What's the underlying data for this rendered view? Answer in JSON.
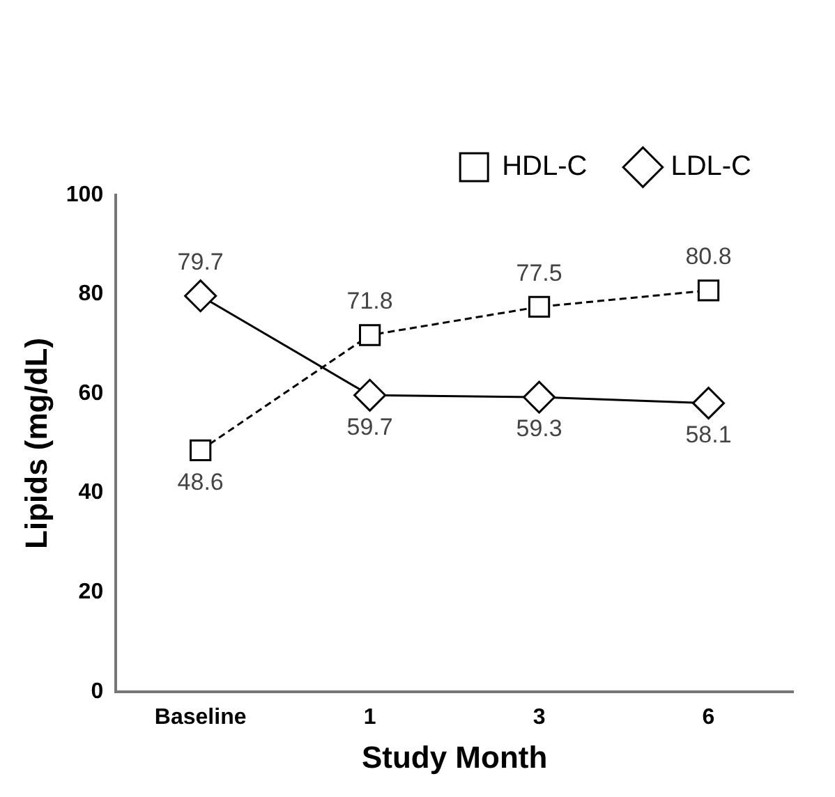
{
  "chart_data": {
    "type": "line",
    "xlabel": "Study Month",
    "ylabel": "Lipids (mg/dL)",
    "categories": [
      "Baseline",
      "1",
      "3",
      "6"
    ],
    "series": [
      {
        "name": "HDL-C",
        "color": "#000000",
        "values": [
          48.6,
          71.8,
          77.5,
          80.8
        ],
        "marker": "square",
        "line_style": "dashed"
      },
      {
        "name": "LDL-C",
        "color": "#000000",
        "values": [
          79.7,
          59.7,
          59.3,
          58.1
        ],
        "marker": "diamond",
        "line_style": "solid"
      }
    ],
    "ylim": [
      0,
      100
    ],
    "yticks": [
      0,
      20,
      40,
      60,
      80,
      100
    ],
    "grid": false,
    "legend": "top right",
    "data_labels": true
  }
}
